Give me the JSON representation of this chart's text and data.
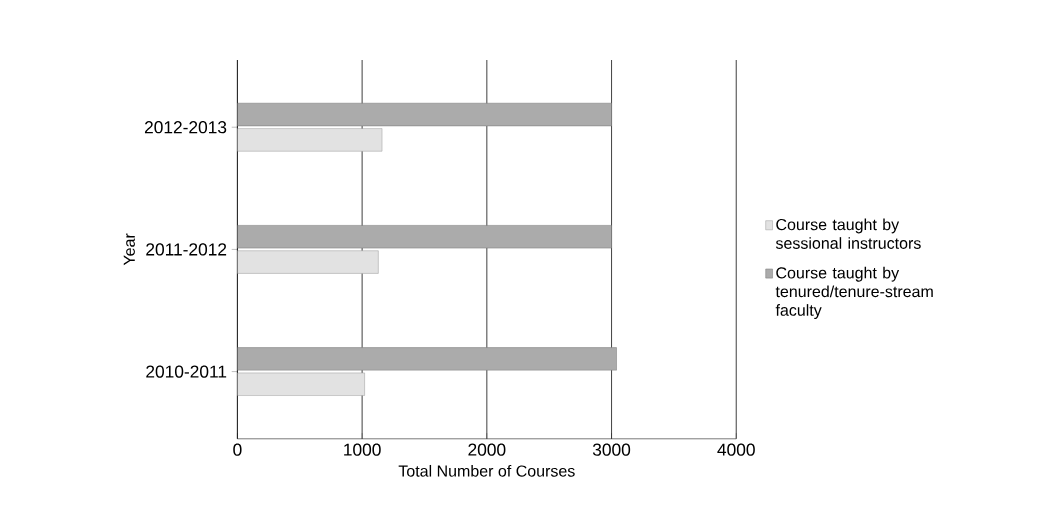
{
  "chart_data": {
    "type": "bar",
    "orientation": "horizontal",
    "categories": [
      "2012-2013",
      "2011-2012",
      "2010-2011"
    ],
    "series": [
      {
        "name": "Course taught by sessional instructors",
        "color": "#e2e2e2",
        "values": [
          1160,
          1130,
          1020
        ]
      },
      {
        "name": "Course taught by tenured/tenure-stream faculty",
        "color": "#ababab",
        "values": [
          3000,
          3000,
          3040
        ]
      }
    ],
    "xlabel": "Total Number of Courses",
    "ylabel": "Year",
    "xlim": [
      0,
      4000
    ],
    "xticks": [
      0,
      1000,
      2000,
      3000,
      4000
    ],
    "grid": "x",
    "legend": "right"
  }
}
